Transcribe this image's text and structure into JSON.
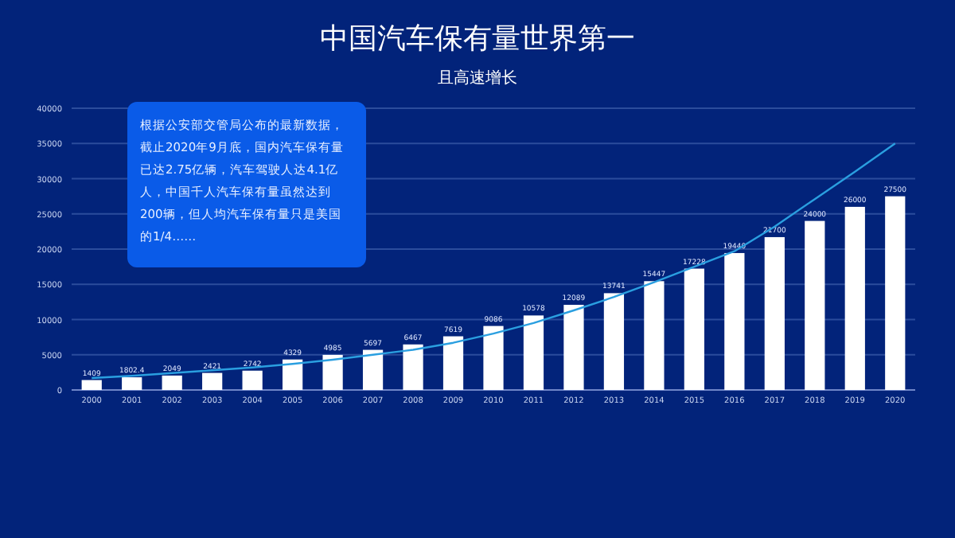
{
  "chart_data": {
    "type": "bar",
    "title": "中国汽车保有量世界第一",
    "subtitle": "且高速增长",
    "categories": [
      "2000",
      "2001",
      "2002",
      "2003",
      "2004",
      "2005",
      "2006",
      "2007",
      "2008",
      "2009",
      "2010",
      "2011",
      "2012",
      "2013",
      "2014",
      "2015",
      "2016",
      "2017",
      "2018",
      "2019",
      "2020"
    ],
    "series": [
      {
        "color": "#ffffff",
        "values": [
          1409,
          1802.4,
          2049,
          2421,
          2742,
          4329,
          4985,
          5697,
          6467,
          7619,
          9086,
          10578,
          12089,
          13741,
          15447,
          17228,
          19440,
          21700,
          24000,
          26000,
          27500
        ],
        "value_labels": [
          "1409",
          "1802.4",
          "2049",
          "2421",
          "2742",
          "4329",
          "4985",
          "5697",
          "6467",
          "7619",
          "9086",
          "10578",
          "12089",
          "13741",
          "15447",
          "17228",
          "19440",
          "21700",
          "24000",
          "26000",
          "27500"
        ]
      },
      {
        "type": "line",
        "color": "#2a9fe0",
        "values": [
          1700,
          2000,
          2400,
          2800,
          3200,
          3700,
          4300,
          5000,
          5700,
          6700,
          8000,
          9500,
          11300,
          13200,
          15300,
          17500,
          19700,
          23200,
          27100,
          31000,
          35000
        ]
      }
    ],
    "ylim": [
      0,
      40000
    ],
    "yticks": [
      0,
      5000,
      10000,
      15000,
      20000,
      25000,
      30000,
      35000,
      40000
    ],
    "grid": "y",
    "annotations": [
      "根据公安部交管局公布的最新数据，截止2020年9月底，国内汽车保有量已达2.75亿辆，汽车驾驶人达4.1亿人，中国千人汽车保有量虽然达到200辆，但人均汽车保有量只是美国的1/4……"
    ]
  }
}
